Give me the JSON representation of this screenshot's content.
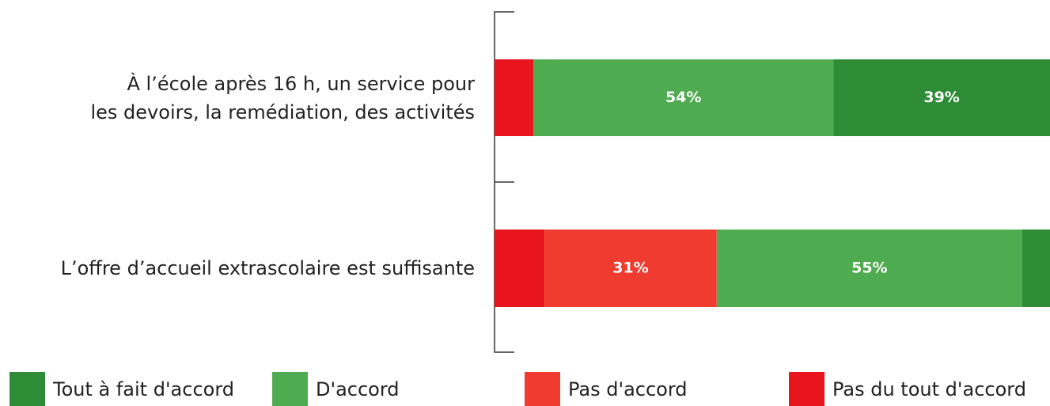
{
  "chart_data": {
    "type": "stacked_bar_horizontal",
    "categories": [
      "À l’école après 16 h, un service pour\nles devoirs, la remédiation, des activités",
      "L’offre d’accueil extrascolaire est suffisante"
    ],
    "series": [
      {
        "name": "Tout à fait d'accord",
        "color": "#2e8b36",
        "values": [
          39,
          5
        ],
        "value_labels": [
          "39%",
          null
        ]
      },
      {
        "name": "D'accord",
        "color": "#4fab4f",
        "values": [
          54,
          55
        ],
        "value_labels": [
          "54%",
          "55%"
        ]
      },
      {
        "name": "Pas d'accord",
        "color": "#f03c30",
        "values": [
          0,
          31
        ],
        "value_labels": [
          null,
          "31%"
        ]
      },
      {
        "name": "Pas du tout d'accord",
        "color": "#e8141e",
        "values": [
          7,
          9
        ],
        "value_labels": [
          null,
          null
        ]
      }
    ],
    "xlim": [
      0,
      100
    ]
  }
}
